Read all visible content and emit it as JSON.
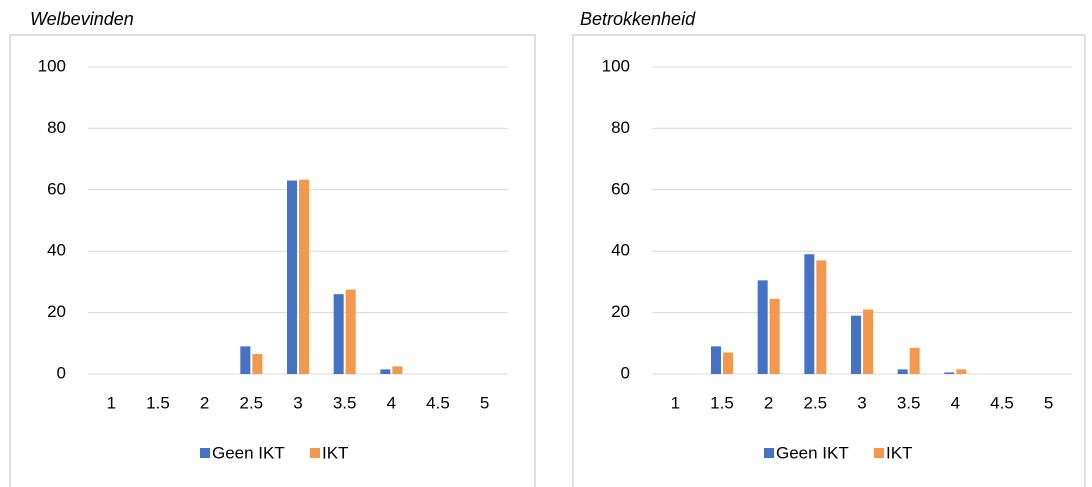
{
  "chart_data": [
    {
      "type": "bar",
      "title": "Welbevinden",
      "categories": [
        "1",
        "1.5",
        "2",
        "2.5",
        "3",
        "3.5",
        "4",
        "4.5",
        "5"
      ],
      "series": [
        {
          "name": "Geen IKT",
          "color": "#4472c4",
          "values": [
            0,
            0,
            0,
            9,
            63,
            26,
            1.5,
            0,
            0
          ]
        },
        {
          "name": "IKT",
          "color": "#f4994b",
          "values": [
            0,
            0,
            0,
            6.5,
            63.3,
            27.5,
            2.5,
            0,
            0
          ]
        }
      ],
      "ylim": [
        0,
        100
      ],
      "yticks": [
        0,
        20,
        40,
        60,
        80,
        100
      ],
      "grid": true,
      "legend": "bottom"
    },
    {
      "type": "bar",
      "title": "Betrokkenheid",
      "categories": [
        "1",
        "1.5",
        "2",
        "2.5",
        "3",
        "3.5",
        "4",
        "4.5",
        "5"
      ],
      "series": [
        {
          "name": "Geen IKT",
          "color": "#4472c4",
          "values": [
            0,
            9,
            30.5,
            39,
            19,
            1.5,
            0.5,
            0,
            0
          ]
        },
        {
          "name": "IKT",
          "color": "#f4994b",
          "values": [
            0,
            7,
            24.5,
            37,
            21,
            8.5,
            1.5,
            0,
            0
          ]
        }
      ],
      "ylim": [
        0,
        100
      ],
      "yticks": [
        0,
        20,
        40,
        60,
        80,
        100
      ],
      "grid": true,
      "legend": "bottom"
    }
  ]
}
